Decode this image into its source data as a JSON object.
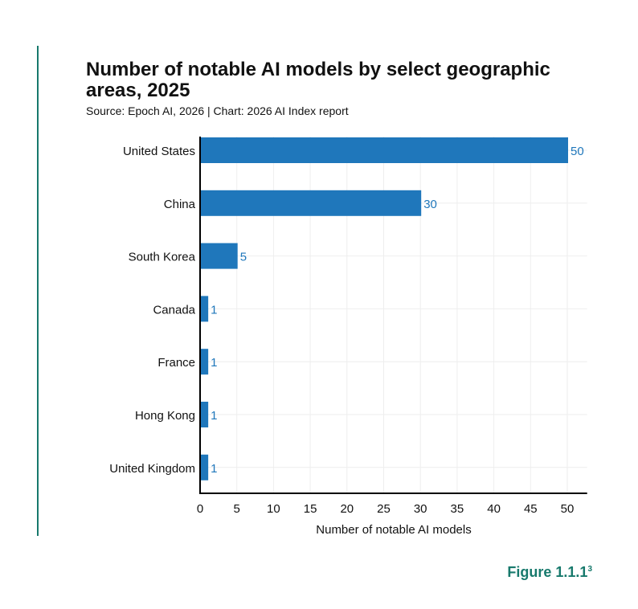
{
  "chart_data": {
    "type": "bar",
    "orientation": "horizontal",
    "title": "Number of notable AI models by select geographic areas, 2025",
    "subtitle": "Source: Epoch AI, 2026 | Chart: 2026 AI Index report",
    "categories": [
      "United States",
      "China",
      "South Korea",
      "Canada",
      "France",
      "Hong Kong",
      "United Kingdom"
    ],
    "values": [
      50,
      30,
      5,
      1,
      1,
      1,
      1
    ],
    "xlabel": "Number of notable AI models",
    "ylabel": "",
    "xlim": [
      0,
      52.7
    ],
    "xticks": [
      0,
      5,
      10,
      15,
      20,
      25,
      30,
      35,
      40,
      45,
      50
    ],
    "grid": true,
    "bar_color": "#1f77bb",
    "label_color": "#1f77bb"
  },
  "figure_label": "Figure 1.1.1",
  "figure_footnote": "3",
  "accent_color": "#17796c"
}
